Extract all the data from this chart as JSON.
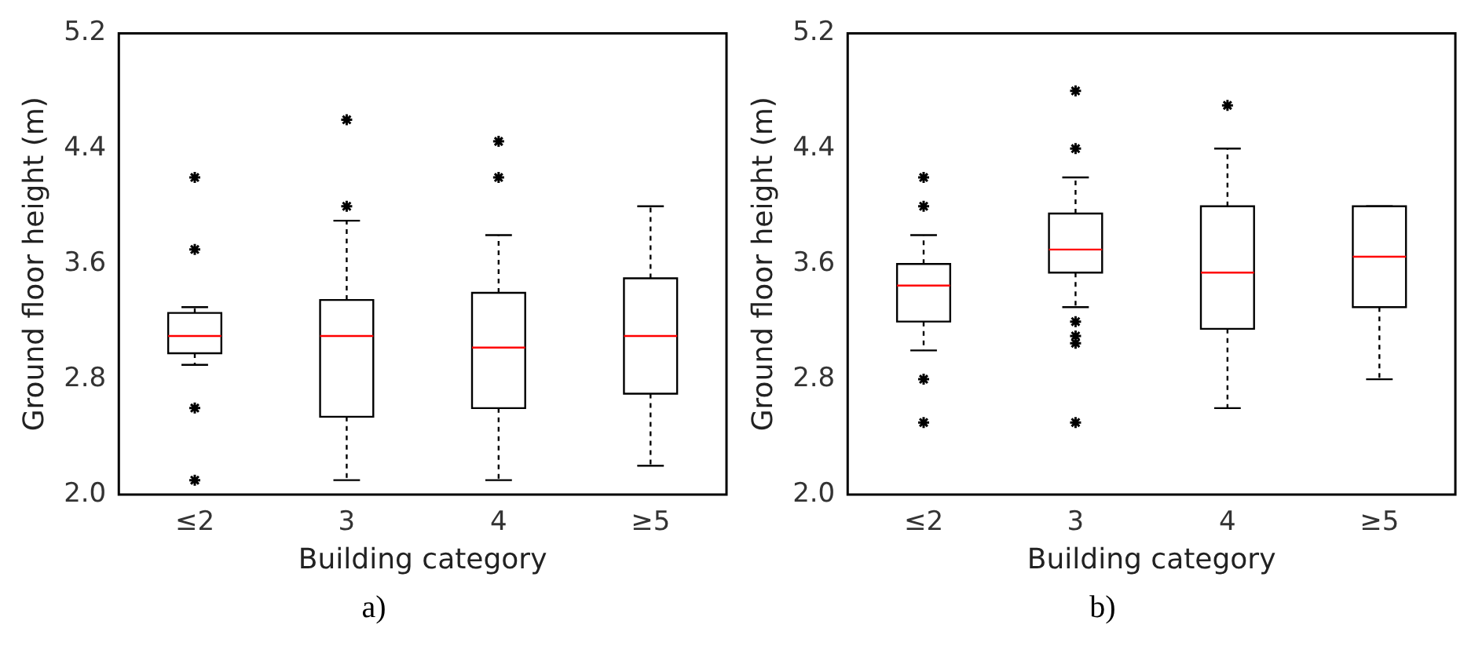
{
  "chart_data": [
    {
      "type": "box",
      "categories": [
        "≤2",
        "3",
        "4",
        "≥5"
      ],
      "xlabel": "Building category",
      "ylabel": "Ground floor height (m)",
      "ylim": [
        2,
        5.2
      ],
      "yticks": [
        {
          "value": 2,
          "label": "2.0"
        },
        {
          "value": 2.8,
          "label": "2.8"
        },
        {
          "value": 3.6,
          "label": "3.6"
        },
        {
          "value": 4.4,
          "label": "4.4"
        },
        {
          "value": 5.2,
          "label": "5.2"
        }
      ],
      "annotations": [
        "a)"
      ],
      "boxes": [
        {
          "low": 2.9,
          "q1": 2.98,
          "median": 3.1,
          "q3": 3.26,
          "high": 3.3,
          "outliers": [
            4.2,
            3.7,
            2.6,
            2.1
          ]
        },
        {
          "low": 2.1,
          "q1": 2.54,
          "median": 3.1,
          "q3": 3.35,
          "high": 3.9,
          "outliers": [
            4.6,
            4.0
          ]
        },
        {
          "low": 2.1,
          "q1": 2.6,
          "median": 3.02,
          "q3": 3.4,
          "high": 3.8,
          "outliers": [
            4.45,
            4.2
          ]
        },
        {
          "low": 2.2,
          "q1": 2.7,
          "median": 3.1,
          "q3": 3.5,
          "high": 4.0
        }
      ]
    },
    {
      "type": "box",
      "categories": [
        "≤2",
        "3",
        "4",
        "≥5"
      ],
      "xlabel": "Building category",
      "ylabel": "Ground floor height (m)",
      "ylim": [
        2,
        5.2
      ],
      "yticks": [
        {
          "value": 2,
          "label": "2.0"
        },
        {
          "value": 2.8,
          "label": "2.8"
        },
        {
          "value": 3.6,
          "label": "3.6"
        },
        {
          "value": 4.4,
          "label": "4.4"
        },
        {
          "value": 5.2,
          "label": "5.2"
        }
      ],
      "annotations": [
        "b)"
      ],
      "boxes": [
        {
          "low": 3.0,
          "q1": 3.2,
          "median": 3.45,
          "q3": 3.6,
          "high": 3.8,
          "outliers": [
            4.2,
            4.0,
            2.8,
            2.5
          ]
        },
        {
          "low": 3.3,
          "q1": 3.54,
          "median": 3.7,
          "q3": 3.95,
          "high": 4.2,
          "outliers": [
            4.8,
            4.4,
            3.2,
            3.1,
            3.05,
            2.5
          ]
        },
        {
          "low": 2.6,
          "q1": 3.15,
          "median": 3.54,
          "q3": 4.0,
          "high": 4.4,
          "outliers": [
            4.7
          ]
        },
        {
          "low": 2.8,
          "q1": 3.3,
          "median": 3.65,
          "q3": 4.0,
          "high": 4.0
        }
      ]
    }
  ]
}
